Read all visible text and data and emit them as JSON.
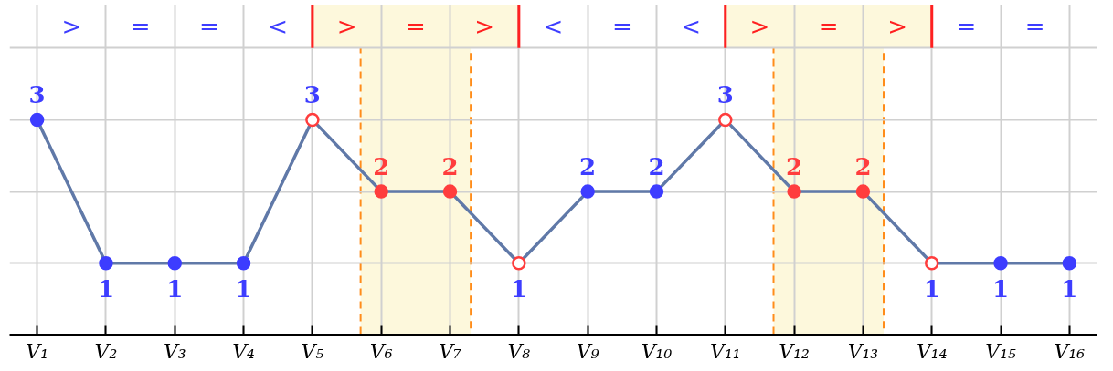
{
  "chart_data": {
    "type": "line",
    "categories": [
      "V₁",
      "V₂",
      "V₃",
      "V₄",
      "V₅",
      "V₆",
      "V₇",
      "V₈",
      "V₉",
      "V₁₀",
      "V₁₁",
      "V₁₂",
      "V₁₃",
      "V₁₄",
      "V₁₅",
      "V₁₆"
    ],
    "ylim": [
      0,
      4.6
    ],
    "yticks": [
      {
        "value": 0,
        "label": null
      },
      {
        "value": 1,
        "label": null
      },
      {
        "value": 2,
        "label": null
      },
      {
        "value": 3,
        "label": null
      },
      {
        "value": 4,
        "label": null
      }
    ],
    "tick_labels": "x",
    "grid": true,
    "marker": "circle",
    "line_style": "solid",
    "data_labels": true,
    "series": [
      {
        "color": "#6079a8",
        "values": [
          3,
          1,
          1,
          1,
          3,
          2,
          2,
          1,
          2,
          2,
          3,
          2,
          2,
          1,
          1,
          1
        ],
        "colors": [
          "#3d3dff",
          "#3d3dff",
          "#3d3dff",
          "#3d3dff",
          "#ff3d3d",
          "#ff3d3d",
          "#ff3d3d",
          "#ff3d3d",
          "#3d3dff",
          "#3d3dff",
          "#ff3d3d",
          "#ff3d3d",
          "#ff3d3d",
          "#ff3d3d",
          "#3d3dff",
          "#3d3dff"
        ]
      }
    ],
    "bands": [
      {
        "axis": "x",
        "from": "V₆",
        "to": "V₇",
        "color": "#fdf8dc"
      },
      {
        "axis": "x",
        "from": "V₁₂",
        "to": "V₁₃",
        "color": "#fdf8dc"
      },
      {
        "axis": "x",
        "from": "V₅",
        "to": "V₈",
        "color": "#fdf8dc"
      },
      {
        "axis": "x",
        "from": "V₁₁",
        "to": "V₁₄",
        "color": "#fdf8dc"
      }
    ],
    "ref_lines": [
      {
        "axis": "x",
        "value": "V₅",
        "color": "#ff2020"
      },
      {
        "axis": "x",
        "value": "V₈",
        "color": "#ff2020"
      },
      {
        "axis": "x",
        "value": "V₁₁",
        "color": "#ff2020"
      },
      {
        "axis": "x",
        "value": "V₁₄",
        "color": "#ff2020"
      }
    ],
    "annotations": [
      ">",
      "=",
      "=",
      "<",
      ">",
      "=",
      ">",
      "<",
      "=",
      "<",
      ">",
      "=",
      ">",
      "=",
      "="
    ]
  }
}
